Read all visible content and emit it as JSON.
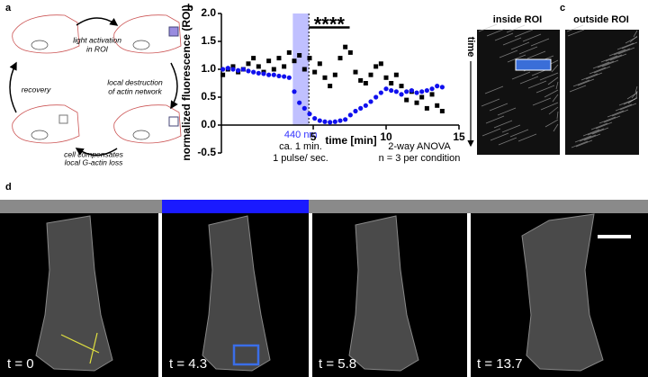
{
  "panels": {
    "a": {
      "label": "a",
      "steps": [
        "light activation",
        "in ROI",
        "local destruction",
        "of actin network",
        "cell compensates",
        "local G-actin loss",
        "recovery"
      ]
    },
    "c": {
      "label": "c",
      "inside": "inside ROI",
      "outside": "outside ROI",
      "axis": "time"
    },
    "d": {
      "label": "d",
      "times": [
        "t = 0",
        "t = 4.3",
        "t = 5.8",
        "t = 13.7"
      ]
    }
  },
  "chart_data": {
    "type": "scatter",
    "panel_label": "b",
    "ylabel": "normalized fluorescence (ROI)",
    "xlabel": "time [min]",
    "xlim": [
      -1.3,
      15
    ],
    "xticks": [
      5,
      10,
      15
    ],
    "ylim": [
      -0.5,
      2.0
    ],
    "yticks": [
      {
        "value": 2,
        "label": "2.0"
      },
      {
        "value": 1.5,
        "label": "1.5"
      },
      {
        "value": 1,
        "label": "1.0"
      },
      {
        "value": 0.5,
        "label": "0.5"
      },
      {
        "value": 0,
        "label": "0.0"
      },
      {
        "value": -0.5,
        "label": "-0.5"
      }
    ],
    "highlight": {
      "x": [
        3.6,
        4.7
      ],
      "label": "440 nm",
      "color": "#3030ff"
    },
    "significance": {
      "label": "****",
      "x": [
        4.7,
        7.5
      ],
      "y": 1.75
    },
    "annotations": [
      "ca. 1 min.",
      "1 pulse/ sec.",
      "2-way ANOVA",
      "n = 3 per condition"
    ],
    "x": [
      -1.2,
      -0.85,
      -0.5,
      -0.15,
      0.2,
      0.55,
      0.9,
      1.25,
      1.6,
      1.95,
      2.3,
      2.65,
      3.0,
      3.35,
      3.7,
      4.05,
      4.4,
      4.75,
      5.1,
      5.45,
      5.8,
      6.15,
      6.5,
      6.85,
      7.2,
      7.55,
      7.9,
      8.25,
      8.6,
      8.95,
      9.3,
      9.65,
      10.0,
      10.35,
      10.7,
      11.05,
      11.4,
      11.75,
      12.1,
      12.45,
      12.8,
      13.15,
      13.5,
      13.85
    ],
    "series": [
      {
        "color": "#000000",
        "values": [
          0.9,
          1.0,
          1.05,
          0.95,
          1.0,
          1.1,
          1.2,
          1.05,
          0.95,
          1.15,
          1.0,
          1.2,
          1.05,
          1.3,
          1.15,
          1.25,
          1.0,
          1.2,
          0.95,
          1.1,
          0.85,
          0.7,
          0.9,
          1.2,
          1.4,
          1.3,
          0.95,
          0.8,
          0.75,
          0.9,
          1.05,
          1.1,
          0.85,
          0.75,
          0.9,
          0.7,
          0.45,
          0.6,
          0.4,
          0.5,
          0.3,
          0.55,
          0.35,
          0.25
        ]
      },
      {
        "color": "#1010ee",
        "values": [
          1.0,
          1.02,
          1.0,
          0.98,
          1.0,
          0.97,
          0.95,
          0.93,
          0.92,
          0.9,
          0.9,
          0.88,
          0.87,
          0.85,
          0.6,
          0.4,
          0.3,
          0.2,
          0.12,
          0.08,
          0.06,
          0.05,
          0.06,
          0.08,
          0.1,
          0.18,
          0.25,
          0.3,
          0.35,
          0.42,
          0.5,
          0.58,
          0.65,
          0.62,
          0.6,
          0.55,
          0.6,
          0.62,
          0.58,
          0.6,
          0.62,
          0.65,
          0.7,
          0.68
        ]
      }
    ]
  }
}
